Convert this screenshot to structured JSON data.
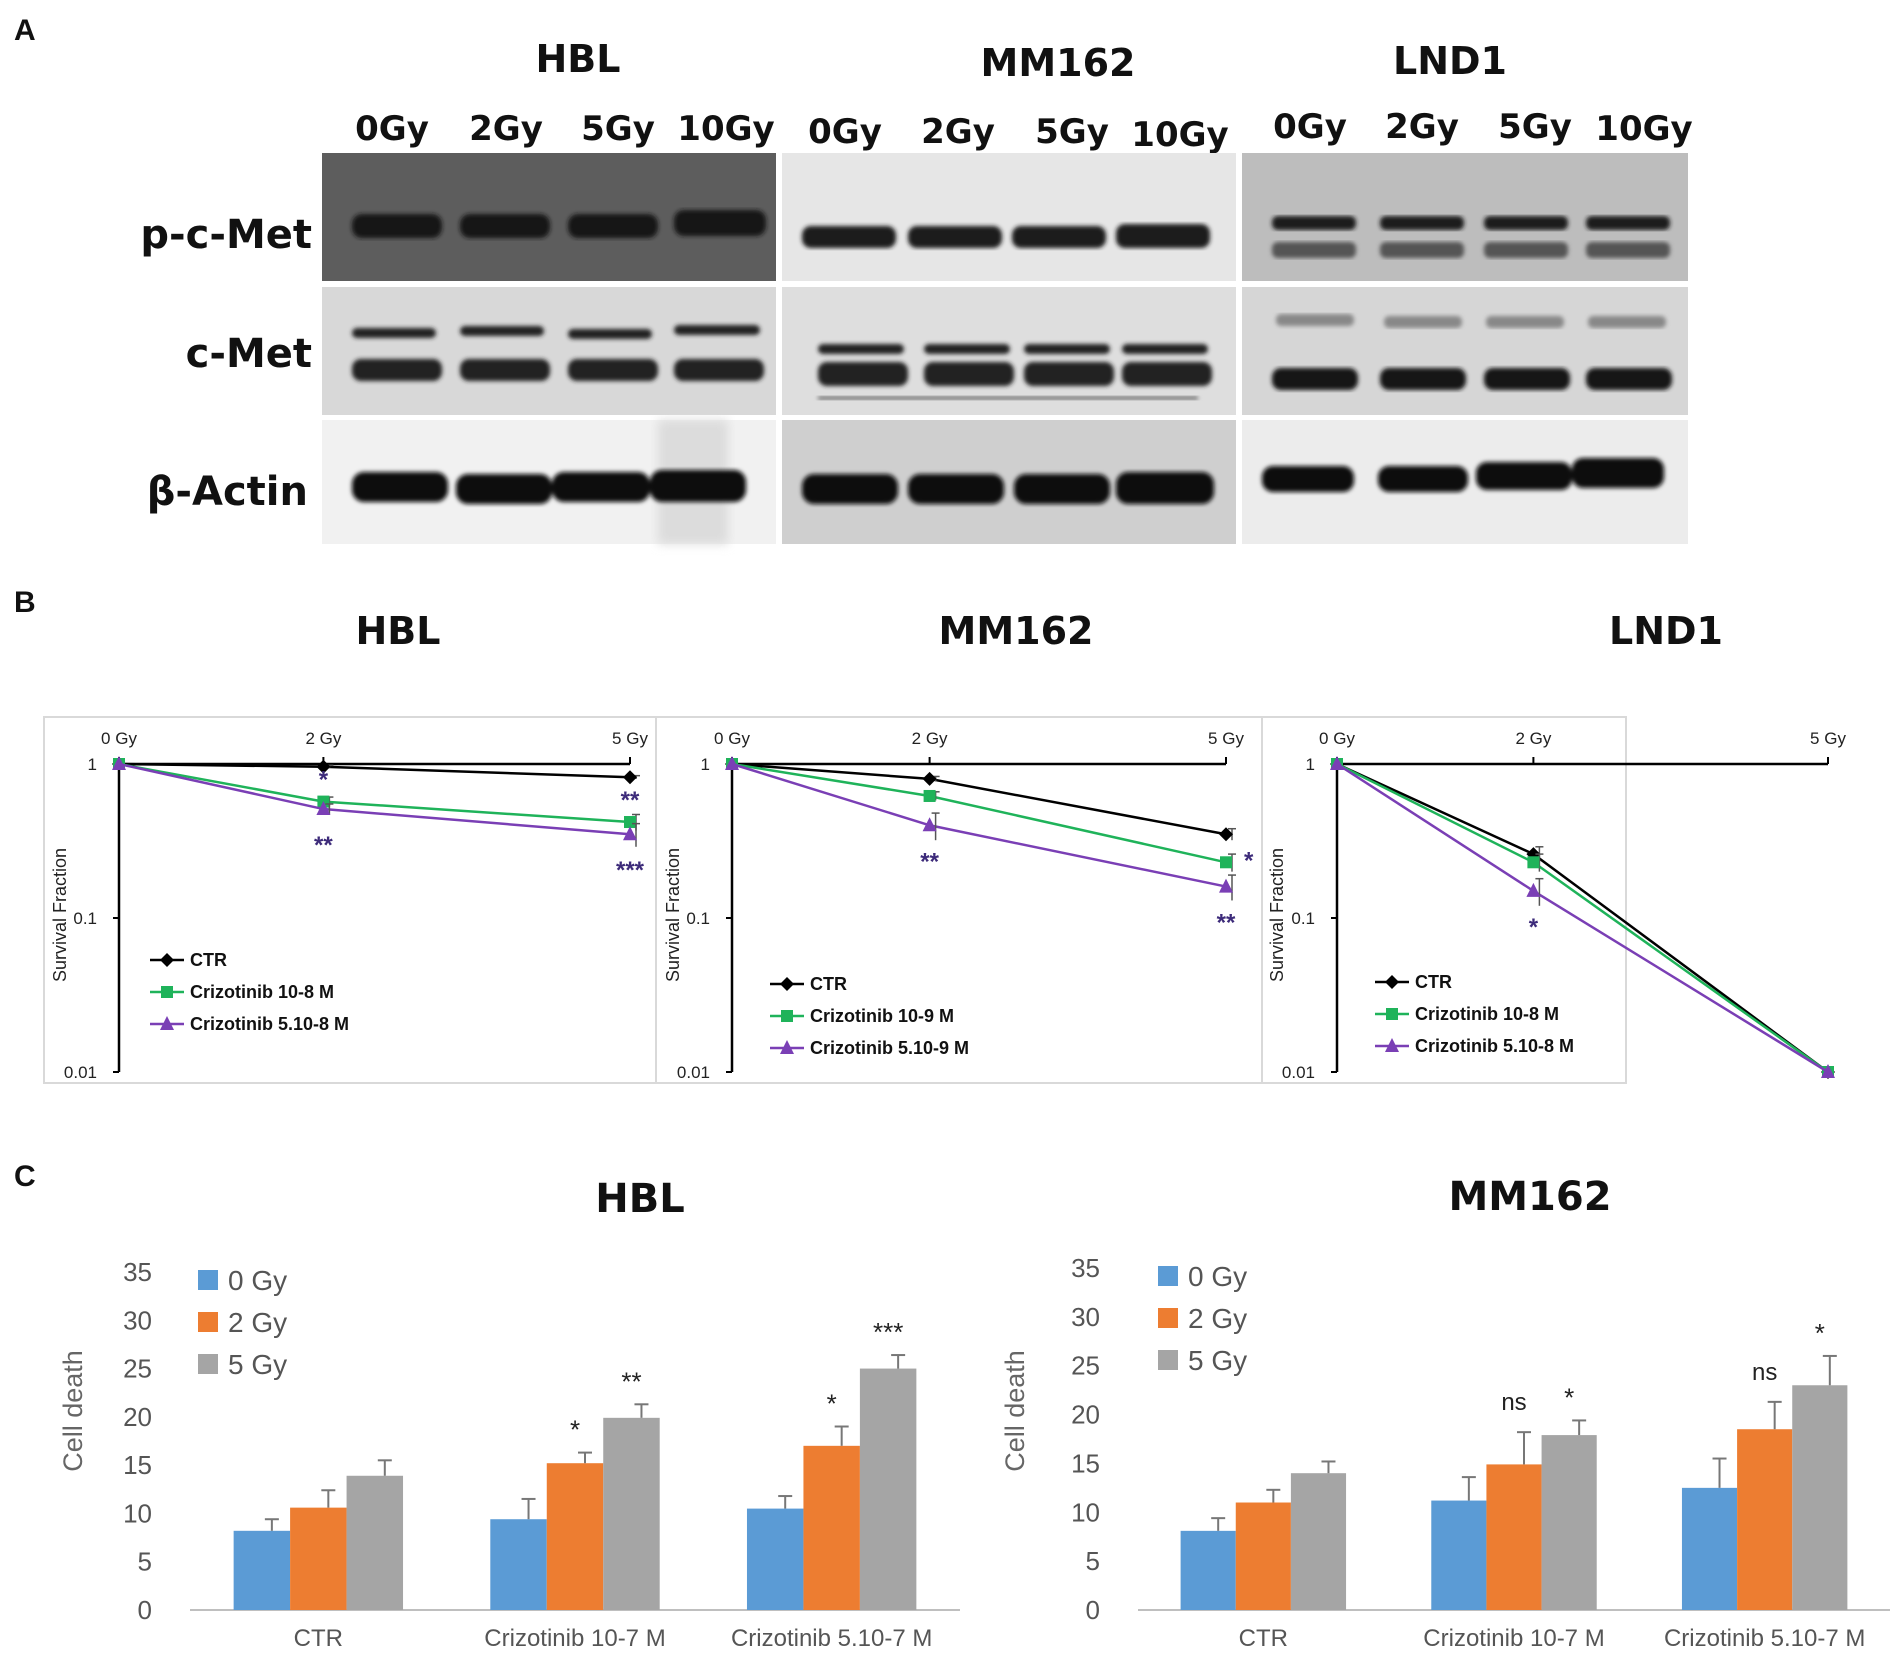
{
  "panels": {
    "a": "A",
    "b": "B",
    "c": "C"
  },
  "western_blot": {
    "cell_lines": [
      {
        "name": "HBL",
        "lanes": [
          "0Gy",
          "2Gy",
          "5Gy",
          "10Gy"
        ]
      },
      {
        "name": "MM162",
        "lanes": [
          "0Gy",
          "2Gy",
          "5Gy",
          "10Gy"
        ]
      },
      {
        "name": "LND1",
        "lanes": [
          "0Gy",
          "2Gy",
          "5Gy",
          "10Gy"
        ]
      }
    ],
    "rows": [
      "p-c-Met",
      "c-Met",
      "β-Actin"
    ]
  },
  "chart_data": [
    {
      "type": "line",
      "title": "HBL",
      "x": [
        "0 Gy",
        "2 Gy",
        "5 Gy"
      ],
      "ylabel": "Survival Fraction",
      "yscale": "log",
      "ylim": [
        0.01,
        1
      ],
      "yticks": [
        "0.01",
        "0.1",
        "1"
      ],
      "legend_position": "bottom-left",
      "series": [
        {
          "name": "CTR",
          "marker": "diamond",
          "color": "#000000",
          "values": [
            1,
            0.96,
            0.82
          ],
          "err": [
            0,
            0.02,
            0.02
          ]
        },
        {
          "name": "Crizotinib 10-8 M",
          "marker": "square",
          "color": "#1fb35a",
          "values": [
            1,
            0.57,
            0.42
          ],
          "err": [
            0,
            0.04,
            0.05
          ]
        },
        {
          "name": "Crizotinib 5.10-8 M",
          "marker": "triangle",
          "color": "#7a3fb5",
          "values": [
            1,
            0.51,
            0.35
          ],
          "err": [
            0,
            0.04,
            0.06
          ]
        }
      ],
      "annotations": [
        {
          "x": 1,
          "text": "*",
          "pos": "above"
        },
        {
          "x": 1,
          "text": "**",
          "pos": "below"
        },
        {
          "x": 2,
          "text": "**",
          "pos": "above"
        },
        {
          "x": 2,
          "text": "***",
          "pos": "below"
        }
      ]
    },
    {
      "type": "line",
      "title": "MM162",
      "x": [
        "0 Gy",
        "2 Gy",
        "5 Gy"
      ],
      "ylabel": "Survival Fraction",
      "yscale": "log",
      "ylim": [
        0.01,
        1
      ],
      "yticks": [
        "0.01",
        "0.1",
        "1"
      ],
      "legend_position": "bottom-left",
      "series": [
        {
          "name": "CTR",
          "marker": "diamond",
          "color": "#000000",
          "values": [
            1,
            0.8,
            0.35
          ],
          "err": [
            0,
            0.03,
            0.03
          ]
        },
        {
          "name": "Crizotinib 10-9 M",
          "marker": "square",
          "color": "#1fb35a",
          "values": [
            1,
            0.62,
            0.23
          ],
          "err": [
            0,
            0.04,
            0.03
          ]
        },
        {
          "name": "Crizotinib 5.10-9 M",
          "marker": "triangle",
          "color": "#7a3fb5",
          "values": [
            1,
            0.4,
            0.16
          ],
          "err": [
            0,
            0.08,
            0.03
          ]
        }
      ],
      "annotations": [
        {
          "x": 1,
          "text": "**",
          "pos": "below"
        },
        {
          "x": 2,
          "text": "*",
          "pos": "right"
        },
        {
          "x": 2,
          "text": "**",
          "pos": "below"
        }
      ]
    },
    {
      "type": "line",
      "title": "LND1",
      "x": [
        "0 Gy",
        "2 Gy",
        "5 Gy"
      ],
      "ylabel": "Survival Fraction",
      "yscale": "log",
      "ylim": [
        0.01,
        1
      ],
      "yticks": [
        "0.01",
        "0.1",
        "1"
      ],
      "legend_position": "bottom-left",
      "series": [
        {
          "name": "CTR",
          "marker": "diamond",
          "color": "#000000",
          "values": [
            1,
            0.26,
            0.01
          ],
          "err": [
            0,
            0.03,
            0
          ]
        },
        {
          "name": "Crizotinib 10-8 M",
          "marker": "square",
          "color": "#1fb35a",
          "values": [
            1,
            0.23,
            0.01
          ],
          "err": [
            0,
            0.03,
            0
          ]
        },
        {
          "name": "Crizotinib 5.10-8 M",
          "marker": "triangle",
          "color": "#7a3fb5",
          "values": [
            1,
            0.15,
            0.01
          ],
          "err": [
            0,
            0.03,
            0
          ]
        }
      ],
      "annotations": [
        {
          "x": 1,
          "text": "*",
          "pos": "below"
        }
      ]
    },
    {
      "type": "bar",
      "title": "HBL",
      "categories": [
        "CTR",
        "Crizotinib 10-7 M",
        "Crizotinib 5.10-7 M"
      ],
      "ylabel": "Cell death",
      "ylim": [
        0,
        35
      ],
      "yticks": [
        0,
        5,
        10,
        15,
        20,
        25,
        30,
        35
      ],
      "legend_position": "top-left",
      "series": [
        {
          "name": "0 Gy",
          "color": "#5b9bd5",
          "values": [
            8.2,
            9.4,
            10.5
          ],
          "err": [
            1.2,
            2.1,
            1.3
          ]
        },
        {
          "name": "2 Gy",
          "color": "#ed7d31",
          "values": [
            10.6,
            15.2,
            17.0
          ],
          "err": [
            1.8,
            1.1,
            2.0
          ]
        },
        {
          "name": "5 Gy",
          "color": "#a5a5a5",
          "values": [
            13.9,
            19.9,
            25.0
          ],
          "err": [
            1.6,
            1.4,
            1.4
          ]
        }
      ],
      "annotations": [
        {
          "category": 1,
          "series": 1,
          "text": "*"
        },
        {
          "category": 1,
          "series": 2,
          "text": "**"
        },
        {
          "category": 2,
          "series": 1,
          "text": "*"
        },
        {
          "category": 2,
          "series": 2,
          "text": "***"
        }
      ]
    },
    {
      "type": "bar",
      "title": "MM162",
      "categories": [
        "CTR",
        "Crizotinib 10-7 M",
        "Crizotinib 5.10-7 M"
      ],
      "ylabel": "Cell death",
      "ylim": [
        0,
        35
      ],
      "yticks": [
        0,
        5,
        10,
        15,
        20,
        25,
        30,
        35
      ],
      "legend_position": "top-left",
      "series": [
        {
          "name": "0 Gy",
          "color": "#5b9bd5",
          "values": [
            8.1,
            11.2,
            12.5
          ],
          "err": [
            1.3,
            2.4,
            3.0
          ]
        },
        {
          "name": "2 Gy",
          "color": "#ed7d31",
          "values": [
            11.0,
            14.9,
            18.5
          ],
          "err": [
            1.3,
            3.3,
            2.8
          ]
        },
        {
          "name": "5 Gy",
          "color": "#a5a5a5",
          "values": [
            14.0,
            17.9,
            23.0
          ],
          "err": [
            1.2,
            1.5,
            3.0
          ]
        }
      ],
      "annotations": [
        {
          "category": 1,
          "series": 1,
          "text": "ns"
        },
        {
          "category": 1,
          "series": 2,
          "text": "*"
        },
        {
          "category": 2,
          "series": 1,
          "text": "ns"
        },
        {
          "category": 2,
          "series": 2,
          "text": "*"
        }
      ]
    }
  ]
}
